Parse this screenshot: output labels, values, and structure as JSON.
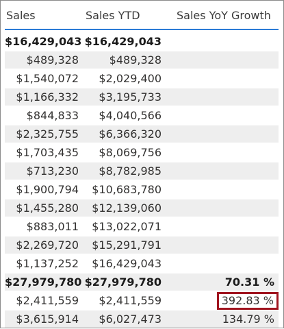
{
  "columns": [
    "Sales",
    "Sales YTD",
    "Sales YoY Growth"
  ],
  "rows": [
    {
      "sales": "$16,429,043",
      "ytd": "$16,429,043",
      "yoy": "",
      "total": true,
      "shaded": false
    },
    {
      "sales": "$489,328",
      "ytd": "$489,328",
      "yoy": "",
      "total": false,
      "shaded": true
    },
    {
      "sales": "$1,540,072",
      "ytd": "$2,029,400",
      "yoy": "",
      "total": false,
      "shaded": false
    },
    {
      "sales": "$1,166,332",
      "ytd": "$3,195,733",
      "yoy": "",
      "total": false,
      "shaded": true
    },
    {
      "sales": "$844,833",
      "ytd": "$4,040,566",
      "yoy": "",
      "total": false,
      "shaded": false
    },
    {
      "sales": "$2,325,755",
      "ytd": "$6,366,320",
      "yoy": "",
      "total": false,
      "shaded": true
    },
    {
      "sales": "$1,703,435",
      "ytd": "$8,069,756",
      "yoy": "",
      "total": false,
      "shaded": false
    },
    {
      "sales": "$713,230",
      "ytd": "$8,782,985",
      "yoy": "",
      "total": false,
      "shaded": true
    },
    {
      "sales": "$1,900,794",
      "ytd": "$10,683,780",
      "yoy": "",
      "total": false,
      "shaded": false
    },
    {
      "sales": "$1,455,280",
      "ytd": "$12,139,060",
      "yoy": "",
      "total": false,
      "shaded": true
    },
    {
      "sales": "$883,011",
      "ytd": "$13,022,071",
      "yoy": "",
      "total": false,
      "shaded": false
    },
    {
      "sales": "$2,269,720",
      "ytd": "$15,291,791",
      "yoy": "",
      "total": false,
      "shaded": true
    },
    {
      "sales": "$1,137,252",
      "ytd": "$16,429,043",
      "yoy": "",
      "total": false,
      "shaded": false
    },
    {
      "sales": "$27,979,780",
      "ytd": "$27,979,780",
      "yoy": "70.31 %",
      "total": true,
      "shaded": true
    },
    {
      "sales": "$2,411,559",
      "ytd": "$2,411,559",
      "yoy": "392.83 %",
      "total": false,
      "shaded": false,
      "highlighted": true
    },
    {
      "sales": "$3,615,914",
      "ytd": "$6,027,473",
      "yoy": "134.79 %",
      "total": false,
      "shaded": true
    }
  ],
  "highlight_color": "#a0141f",
  "header_rule_color": "#2b7bd6"
}
